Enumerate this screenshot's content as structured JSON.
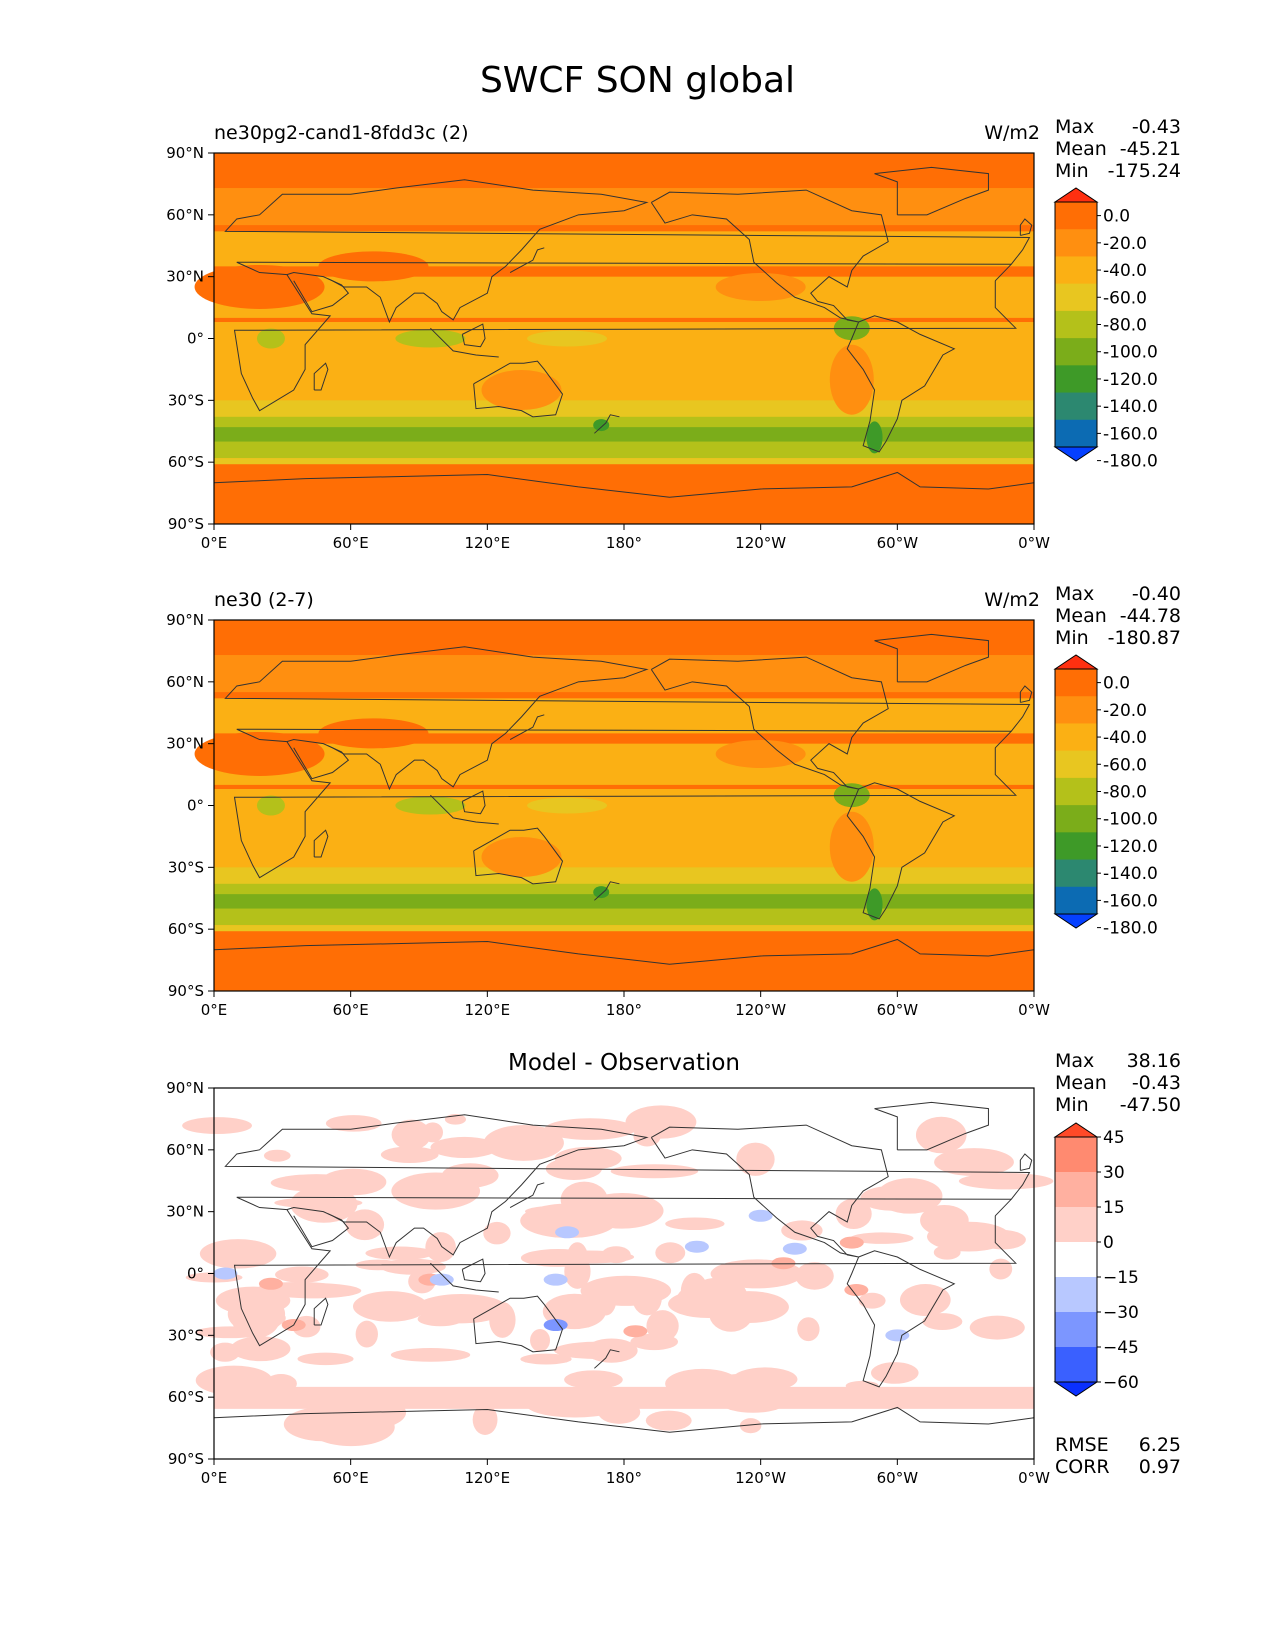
{
  "figure": {
    "title": "SWCF SON global",
    "panels": [
      {
        "left_title": "ne30pg2-cand1-8fdd3c (2)",
        "right_title": "W/m2",
        "stats": [
          {
            "label": "Max",
            "value": "-0.43"
          },
          {
            "label": "Mean",
            "value": "-45.21"
          },
          {
            "label": "Min",
            "value": "-175.24"
          }
        ],
        "colorbar_ticks": [
          "0.0",
          "-20.0",
          "-40.0",
          "-60.0",
          "-80.0",
          "-100.0",
          "-120.0",
          "-140.0",
          "-160.0",
          "-180.0"
        ],
        "colorbar_colors": [
          "#ff3010",
          "#ff6e05",
          "#ff8f10",
          "#fbb014",
          "#e8c620",
          "#b4c11a",
          "#7bad1a",
          "#3e9a28",
          "#2c8870",
          "#0c6bb3",
          "#0540ff"
        ]
      },
      {
        "left_title": "ne30 (2-7)",
        "right_title": "W/m2",
        "stats": [
          {
            "label": "Max",
            "value": "-0.40"
          },
          {
            "label": "Mean",
            "value": "-44.78"
          },
          {
            "label": "Min",
            "value": "-180.87"
          }
        ],
        "colorbar_ticks": [
          "0.0",
          "-20.0",
          "-40.0",
          "-60.0",
          "-80.0",
          "-100.0",
          "-120.0",
          "-140.0",
          "-160.0",
          "-180.0"
        ],
        "colorbar_colors": [
          "#ff3010",
          "#ff6e05",
          "#ff8f10",
          "#fbb014",
          "#e8c620",
          "#b4c11a",
          "#7bad1a",
          "#3e9a28",
          "#2c8870",
          "#0c6bb3",
          "#0540ff"
        ]
      },
      {
        "center_title": "Model - Observation",
        "stats": [
          {
            "label": "Max",
            "value": "38.16"
          },
          {
            "label": "Mean",
            "value": "-0.43"
          },
          {
            "label": "Min",
            "value": "-47.50"
          }
        ],
        "colorbar_ticks": [
          "45",
          "30",
          "15",
          "0",
          "−15",
          "−30",
          "−45",
          "−60"
        ],
        "colorbar_colors": [
          "#ff4a28",
          "#ff8a70",
          "#ffb0a0",
          "#ffd0c8",
          "#ffffff",
          "#b8c8ff",
          "#7c96ff",
          "#3a60ff",
          "#0a30ff"
        ],
        "bottom_stats": [
          {
            "label": "RMSE",
            "value": "6.25"
          },
          {
            "label": "CORR",
            "value": "0.97"
          }
        ]
      }
    ],
    "lat_ticks": [
      "90°N",
      "60°N",
      "30°N",
      "0°",
      "30°S",
      "60°S",
      "90°S"
    ],
    "lon_ticks": [
      "0°E",
      "60°E",
      "120°E",
      "180°",
      "120°W",
      "60°W",
      "0°W"
    ]
  }
}
